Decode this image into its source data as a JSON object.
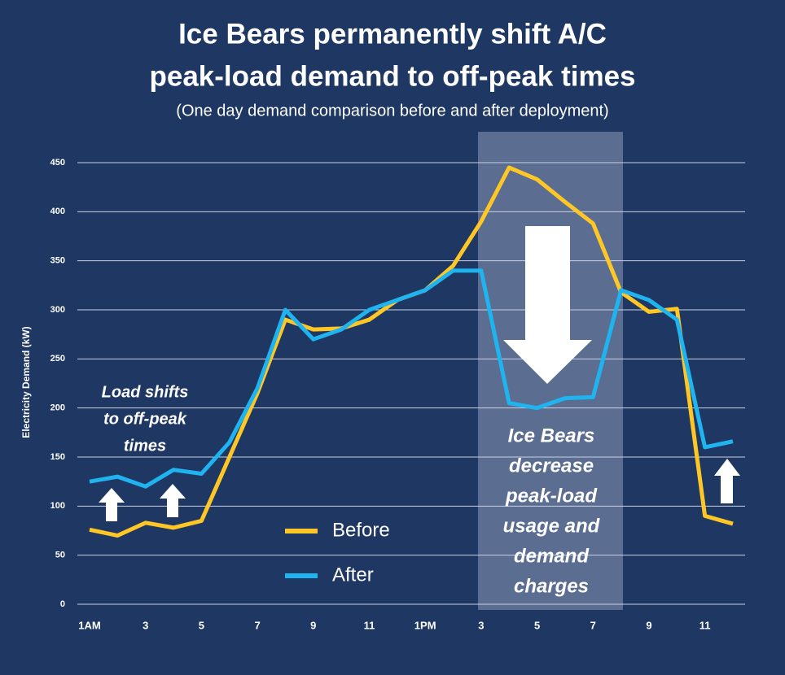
{
  "chart_data": {
    "type": "line",
    "title": [
      "Ice Bears permanently shift A/C",
      "peak-load demand to off-peak times"
    ],
    "subtitle": "(One day demand comparison before and after deployment)",
    "y_label": "Electricity Demand (kW)",
    "categories": [
      "1AM",
      null,
      "3",
      null,
      "5",
      null,
      "7",
      null,
      "9",
      null,
      "11",
      null,
      "1PM",
      null,
      "3",
      null,
      "5",
      null,
      "7",
      null,
      "9",
      null,
      "11",
      null
    ],
    "series": [
      {
        "name": "Before",
        "color": "#ffc726",
        "values": [
          76,
          70,
          83,
          78,
          85,
          150,
          215,
          290,
          280,
          281,
          290,
          310,
          320,
          345,
          390,
          445,
          433,
          410,
          388,
          318,
          298,
          301,
          90,
          82
        ]
      },
      {
        "name": "After",
        "color": "#1fb4ef",
        "values": [
          125,
          130,
          120,
          137,
          133,
          165,
          220,
          300,
          270,
          280,
          300,
          310,
          320,
          340,
          340,
          205,
          200,
          210,
          211,
          320,
          310,
          290,
          160,
          166
        ]
      }
    ],
    "ylim": [
      0,
      450
    ],
    "yticks": [
      0,
      50,
      100,
      150,
      200,
      250,
      300,
      350,
      400,
      450
    ],
    "grid": true,
    "annotations": [
      [
        "Load shifts",
        "to off-peak",
        "times"
      ],
      [
        "Ice Bears",
        "decrease",
        "peak-load",
        "usage and",
        "demand",
        "charges"
      ]
    ]
  }
}
